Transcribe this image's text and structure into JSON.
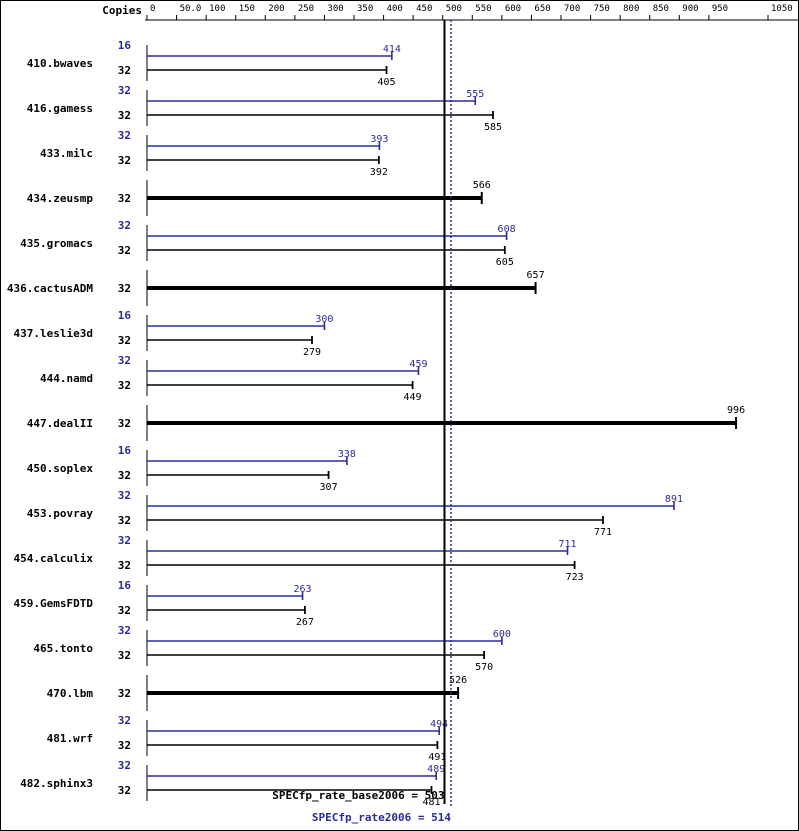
{
  "header": {
    "copies_label": "Copies"
  },
  "colors": {
    "peak": "#2b2b9b",
    "base": "#000000",
    "frame": "#000000"
  },
  "chart_data": {
    "type": "bar",
    "orientation": "horizontal",
    "xlim": [
      0,
      1050
    ],
    "ticks": [
      {
        "value": 0,
        "label": "0"
      },
      {
        "value": 50,
        "label": "50.0"
      },
      {
        "value": 100,
        "label": "100"
      },
      {
        "value": 150,
        "label": "150"
      },
      {
        "value": 200,
        "label": "200"
      },
      {
        "value": 250,
        "label": "250"
      },
      {
        "value": 300,
        "label": "300"
      },
      {
        "value": 350,
        "label": "350"
      },
      {
        "value": 400,
        "label": "400"
      },
      {
        "value": 450,
        "label": "450"
      },
      {
        "value": 500,
        "label": "500"
      },
      {
        "value": 550,
        "label": "550"
      },
      {
        "value": 600,
        "label": "600"
      },
      {
        "value": 650,
        "label": "650"
      },
      {
        "value": 700,
        "label": "700"
      },
      {
        "value": 750,
        "label": "750"
      },
      {
        "value": 800,
        "label": "800"
      },
      {
        "value": 850,
        "label": "850"
      },
      {
        "value": 900,
        "label": "900"
      },
      {
        "value": 950,
        "label": "950"
      },
      {
        "value": 1050,
        "label": "1050"
      }
    ],
    "benchmarks": [
      {
        "name": "410.bwaves",
        "peak_copies": "16",
        "peak": 414,
        "base_copies": "32",
        "base": 405
      },
      {
        "name": "416.gamess",
        "peak_copies": "32",
        "peak": 555,
        "base_copies": "32",
        "base": 585
      },
      {
        "name": "433.milc",
        "peak_copies": "32",
        "peak": 393,
        "base_copies": "32",
        "base": 392
      },
      {
        "name": "434.zeusmp",
        "peak_copies": null,
        "peak": null,
        "base_copies": "32",
        "base": 566
      },
      {
        "name": "435.gromacs",
        "peak_copies": "32",
        "peak": 608,
        "base_copies": "32",
        "base": 605
      },
      {
        "name": "436.cactusADM",
        "peak_copies": null,
        "peak": null,
        "base_copies": "32",
        "base": 657
      },
      {
        "name": "437.leslie3d",
        "peak_copies": "16",
        "peak": 300,
        "base_copies": "32",
        "base": 279
      },
      {
        "name": "444.namd",
        "peak_copies": "32",
        "peak": 459,
        "base_copies": "32",
        "base": 449
      },
      {
        "name": "447.dealII",
        "peak_copies": null,
        "peak": null,
        "base_copies": "32",
        "base": 996
      },
      {
        "name": "450.soplex",
        "peak_copies": "16",
        "peak": 338,
        "base_copies": "32",
        "base": 307
      },
      {
        "name": "453.povray",
        "peak_copies": "32",
        "peak": 891,
        "base_copies": "32",
        "base": 771
      },
      {
        "name": "454.calculix",
        "peak_copies": "32",
        "peak": 711,
        "base_copies": "32",
        "base": 723
      },
      {
        "name": "459.GemsFDTD",
        "peak_copies": "16",
        "peak": 263,
        "base_copies": "32",
        "base": 267
      },
      {
        "name": "465.tonto",
        "peak_copies": "32",
        "peak": 600,
        "base_copies": "32",
        "base": 570
      },
      {
        "name": "470.lbm",
        "peak_copies": null,
        "peak": null,
        "base_copies": "32",
        "base": 526
      },
      {
        "name": "481.wrf",
        "peak_copies": "32",
        "peak": 494,
        "base_copies": "32",
        "base": 491
      },
      {
        "name": "482.sphinx3",
        "peak_copies": "32",
        "peak": 489,
        "base_copies": "32",
        "base": 481
      }
    ],
    "summary": {
      "base": {
        "label": "SPECfp_rate_base2006 = 503",
        "value": 503
      },
      "peak": {
        "label": "SPECfp_rate2006 = 514",
        "value": 514
      }
    }
  }
}
